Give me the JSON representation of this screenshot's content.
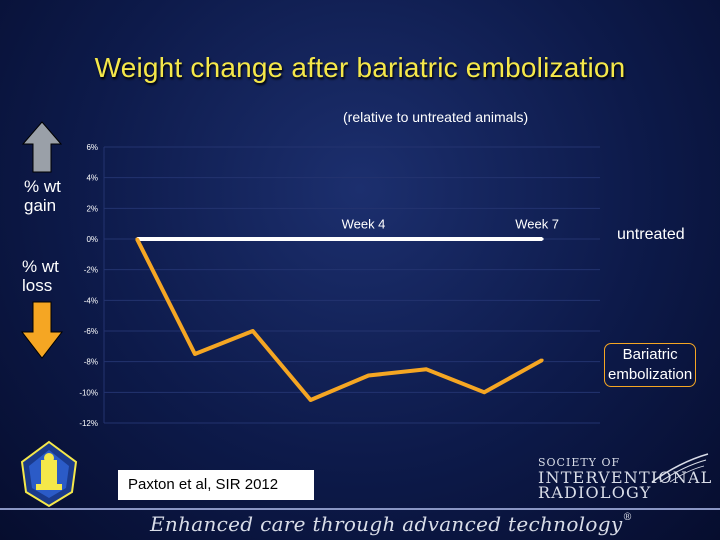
{
  "title": "Weight change after bariatric embolization",
  "subtitle": "(relative to untreated animals)",
  "side_labels": {
    "gain": "% wt\ngain",
    "loss": "% wt\nloss"
  },
  "citation": "Paxton et al, SIR 2012",
  "footer_tagline": "Enhanced care through advanced technology",
  "sir_logo": {
    "line1": "SOCIETY OF",
    "line2": "INTERVENTIONAL",
    "line3": "RADIOLOGY"
  },
  "colors": {
    "title": "#f5e84a",
    "bariatric": "#f5a623",
    "untreated": "#ffffff",
    "grid": "#23336f",
    "axis_text": "#ffffff",
    "up_arrow": "#9aa0a8",
    "down_arrow": "#f5a623"
  },
  "chart_data": {
    "type": "line",
    "title": "Weight change after bariatric embolization",
    "subtitle": "(relative to untreated animals)",
    "ylim": [
      -12,
      6
    ],
    "yticks": [
      6,
      4,
      2,
      0,
      -2,
      -4,
      -6,
      -8,
      -10,
      -12
    ],
    "ytick_labels": [
      "6%",
      "4%",
      "2%",
      "0%",
      "-2%",
      "-4%",
      "-6%",
      "-8%",
      "-10%",
      "-12%"
    ],
    "week_labels": [
      "Week 4",
      "Week 7"
    ],
    "week_label_x": [
      4,
      7
    ],
    "x": [
      0,
      1,
      2,
      3,
      4,
      5,
      6,
      7
    ],
    "series": [
      {
        "name": "untreated",
        "values": [
          0,
          0,
          0,
          0,
          0,
          0,
          0,
          0
        ],
        "color": "#ffffff"
      },
      {
        "name": "Bariatric embolization",
        "values": [
          0,
          -7.5,
          -6.0,
          -10.5,
          -8.9,
          -8.5,
          -10.0,
          -7.9
        ],
        "color": "#f5a623"
      }
    ],
    "grid": true
  },
  "legend_labels": {
    "untreated": "untreated",
    "bariatric": "Bariatric embolization"
  }
}
